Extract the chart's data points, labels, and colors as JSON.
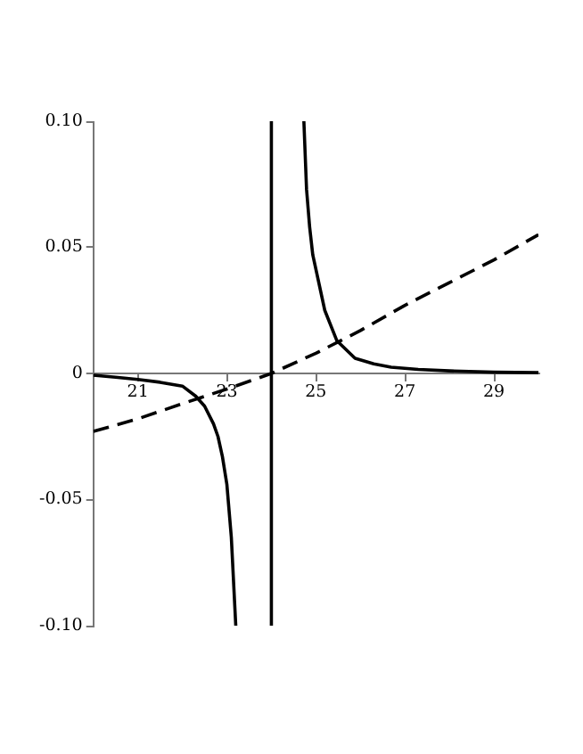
{
  "chart_data": {
    "type": "line",
    "xlim": [
      20,
      30
    ],
    "ylim": [
      -0.1,
      0.1
    ],
    "xticks": [
      21,
      23,
      25,
      27,
      29
    ],
    "yticks": [
      {
        "value": -0.1,
        "label": "-0.10"
      },
      {
        "value": -0.05,
        "label": "-0.05"
      },
      0,
      {
        "value": 0.05,
        "label": "0.05"
      },
      {
        "value": 0.1,
        "label": "0.10"
      }
    ],
    "marker": "none",
    "grid": false,
    "legend": false,
    "series": [
      {
        "color": "#000000",
        "line_style": "solid",
        "x": [
          20,
          20.5,
          21,
          21.5,
          22,
          22.3,
          22.5,
          22.7,
          22.8,
          22.9,
          23,
          23.1,
          23.2
        ],
        "values": [
          -0.0007,
          -0.0015,
          -0.0024,
          -0.0035,
          -0.005,
          -0.009,
          -0.013,
          -0.02,
          -0.025,
          -0.033,
          -0.044,
          -0.065,
          -0.1
        ]
      },
      {
        "color": "#000000",
        "line_style": "solid",
        "x": [
          24.73,
          24.79,
          24.86,
          24.93,
          25.2,
          25.47,
          25.88,
          26.3,
          26.69,
          27.3,
          28,
          29,
          30
        ],
        "values": [
          0.1,
          0.073,
          0.058,
          0.047,
          0.025,
          0.013,
          0.006,
          0.0038,
          0.0025,
          0.0016,
          0.001,
          0.0005,
          0.0003
        ]
      },
      {
        "color": "#000000",
        "line_style": "dashed",
        "x": [
          20,
          21,
          22,
          23,
          24,
          25,
          26,
          27,
          28,
          29,
          30
        ],
        "values": [
          -0.023,
          -0.018,
          -0.012,
          -0.0062,
          0,
          0.008,
          0.017,
          0.027,
          0.036,
          0.045,
          0.055
        ]
      }
    ],
    "ref_lines": [
      {
        "axis": "x",
        "value": 24,
        "color": "#000000",
        "line_style": "solid"
      }
    ]
  }
}
